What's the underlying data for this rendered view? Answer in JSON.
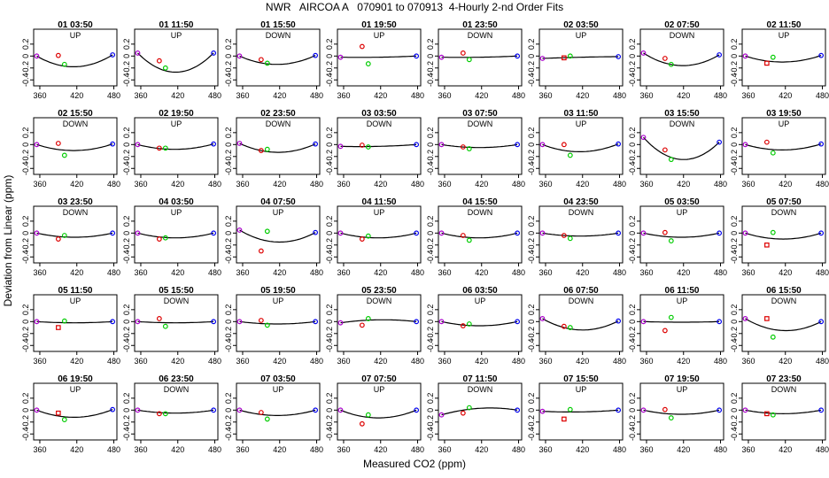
{
  "figure": {
    "title": "NWR   AIRCOA A   070901 to 070913  4-Hourly 2-nd Order Fits",
    "ylabel": "Deviation from Linear (ppm)",
    "xlabel": "Measured CO2 (ppm)"
  },
  "colors": {
    "fit_curve": "#000000",
    "point_purple": "#aa00cc",
    "point_red": "#dd0000",
    "point_green": "#00cc00",
    "point_blue": "#0000ee"
  },
  "chart_data": {
    "type": "scatter",
    "layout": "5 rows x 8 columns of small multiples",
    "x_axis": {
      "range": [
        350,
        485
      ],
      "ticks": [
        360,
        420,
        480
      ]
    },
    "y_axis": {
      "range": [
        -0.5,
        0.45
      ],
      "ticks": [
        0.2,
        0.0,
        -0.2,
        -0.4
      ],
      "tick_labels": [
        "0.2",
        "0",
        "-0.2",
        "-0.4"
      ]
    },
    "standards_x": {
      "purple": 355,
      "red": 390,
      "green": 400,
      "blue": 478
    },
    "panels": [
      {
        "title": "01 03:50",
        "dir": "UP",
        "curve": [
          0,
          -0.18,
          0.02
        ],
        "red": 0.01,
        "red_marker": "circle",
        "green": -0.14
      },
      {
        "title": "01 11:50",
        "dir": "UP",
        "curve": [
          0.05,
          -0.27,
          0.05
        ],
        "red": -0.08,
        "red_marker": "circle",
        "green": -0.2
      },
      {
        "title": "01 15:50",
        "dir": "DOWN",
        "curve": [
          0,
          -0.14,
          0.01
        ],
        "red": -0.06,
        "red_marker": "circle",
        "green": -0.12
      },
      {
        "title": "01 19:50",
        "dir": "UP",
        "curve": [
          -0.02,
          -0.02,
          0
        ],
        "red": 0.16,
        "red_marker": "circle",
        "green": -0.13
      },
      {
        "title": "01 23:50",
        "dir": "DOWN",
        "curve": [
          -0.02,
          -0.02,
          0
        ],
        "red": 0.05,
        "red_marker": "circle",
        "green": -0.06
      },
      {
        "title": "02 03:50",
        "dir": "UP",
        "curve": [
          -0.04,
          -0.02,
          -0.01
        ],
        "red": -0.03,
        "red_marker": "square",
        "green": 0
      },
      {
        "title": "02 07:50",
        "dir": "DOWN",
        "curve": [
          0.05,
          -0.16,
          0.02
        ],
        "red": -0.04,
        "red_marker": "circle",
        "green": -0.14
      },
      {
        "title": "02 11:50",
        "dir": "UP",
        "curve": [
          0,
          -0.1,
          0.01
        ],
        "red": -0.12,
        "red_marker": "square",
        "green": -0.02
      },
      {
        "title": "02 15:50",
        "dir": "DOWN",
        "curve": [
          0,
          -0.1,
          0.01
        ],
        "red": 0.02,
        "red_marker": "circle",
        "green": -0.18
      },
      {
        "title": "02 19:50",
        "dir": "UP",
        "curve": [
          0,
          -0.08,
          0.01
        ],
        "red": -0.06,
        "red_marker": "circle",
        "green": -0.06
      },
      {
        "title": "02 23:50",
        "dir": "DOWN",
        "curve": [
          0.02,
          -0.13,
          0.01
        ],
        "red": -0.1,
        "red_marker": "circle",
        "green": -0.08
      },
      {
        "title": "03 03:50",
        "dir": "DOWN",
        "curve": [
          -0.03,
          -0.03,
          0
        ],
        "red": -0.01,
        "red_marker": "circle",
        "green": -0.04
      },
      {
        "title": "03 07:50",
        "dir": "DOWN",
        "curve": [
          0,
          -0.05,
          0
        ],
        "red": -0.04,
        "red_marker": "circle",
        "green": -0.07
      },
      {
        "title": "03 11:50",
        "dir": "UP",
        "curve": [
          0,
          -0.12,
          0.01
        ],
        "red": 0,
        "red_marker": "circle",
        "green": -0.18
      },
      {
        "title": "03 15:50",
        "dir": "DOWN",
        "curve": [
          0.12,
          -0.25,
          0.04
        ],
        "red": -0.09,
        "red_marker": "circle",
        "green": -0.25
      },
      {
        "title": "03 19:50",
        "dir": "UP",
        "curve": [
          0,
          -0.09,
          0.01
        ],
        "red": 0.04,
        "red_marker": "circle",
        "green": -0.14
      },
      {
        "title": "03 23:50",
        "dir": "DOWN",
        "curve": [
          0,
          -0.07,
          0
        ],
        "red": -0.1,
        "red_marker": "circle",
        "green": -0.04
      },
      {
        "title": "04 03:50",
        "dir": "UP",
        "curve": [
          0,
          -0.08,
          0
        ],
        "red": -0.1,
        "red_marker": "circle",
        "green": -0.08
      },
      {
        "title": "04 07:50",
        "dir": "UP",
        "curve": [
          0.05,
          -0.15,
          0.01
        ],
        "red": -0.3,
        "red_marker": "circle",
        "green": 0.03
      },
      {
        "title": "04 11:50",
        "dir": "UP",
        "curve": [
          0,
          -0.08,
          0
        ],
        "red": -0.1,
        "red_marker": "circle",
        "green": -0.05
      },
      {
        "title": "04 15:50",
        "dir": "DOWN",
        "curve": [
          0,
          -0.08,
          0
        ],
        "red": -0.04,
        "red_marker": "circle",
        "green": -0.12
      },
      {
        "title": "04 23:50",
        "dir": "DOWN",
        "curve": [
          0,
          -0.05,
          0
        ],
        "red": -0.04,
        "red_marker": "circle",
        "green": -0.09
      },
      {
        "title": "05 03:50",
        "dir": "UP",
        "curve": [
          0,
          -0.07,
          0
        ],
        "red": 0.01,
        "red_marker": "circle",
        "green": -0.13
      },
      {
        "title": "05 07:50",
        "dir": "DOWN",
        "curve": [
          0,
          -0.1,
          0
        ],
        "red": -0.2,
        "red_marker": "square",
        "green": 0.01
      },
      {
        "title": "05 11:50",
        "dir": "UP",
        "curve": [
          0,
          -0.02,
          0
        ],
        "red": -0.1,
        "red_marker": "square",
        "green": 0.01
      },
      {
        "title": "05 15:50",
        "dir": "DOWN",
        "curve": [
          0,
          -0.02,
          0
        ],
        "red": 0.05,
        "red_marker": "circle",
        "green": -0.08
      },
      {
        "title": "05 19:50",
        "dir": "UP",
        "curve": [
          0,
          -0.04,
          0
        ],
        "red": 0.02,
        "red_marker": "circle",
        "green": -0.06
      },
      {
        "title": "05 23:50",
        "dir": "DOWN",
        "curve": [
          -0.02,
          0.03,
          0
        ],
        "red": -0.06,
        "red_marker": "circle",
        "green": 0.05
      },
      {
        "title": "06 03:50",
        "dir": "UP",
        "curve": [
          0,
          -0.07,
          0
        ],
        "red": -0.07,
        "red_marker": "circle",
        "green": -0.04
      },
      {
        "title": "06 07:50",
        "dir": "DOWN",
        "curve": [
          0.05,
          -0.14,
          0.01
        ],
        "red": -0.08,
        "red_marker": "circle",
        "green": -0.1
      },
      {
        "title": "06 11:50",
        "dir": "UP",
        "curve": [
          0,
          -0.01,
          0
        ],
        "red": -0.15,
        "red_marker": "circle",
        "green": 0.07
      },
      {
        "title": "06 15:50",
        "dir": "DOWN",
        "curve": [
          0.05,
          -0.15,
          0
        ],
        "red": 0.05,
        "red_marker": "square",
        "green": -0.26
      },
      {
        "title": "06 19:50",
        "dir": "UP",
        "curve": [
          0,
          -0.12,
          0.01
        ],
        "red": -0.05,
        "red_marker": "square",
        "green": -0.16
      },
      {
        "title": "06 23:50",
        "dir": "DOWN",
        "curve": [
          0,
          -0.05,
          0
        ],
        "red": -0.06,
        "red_marker": "circle",
        "green": -0.06
      },
      {
        "title": "07 03:50",
        "dir": "UP",
        "curve": [
          0,
          -0.09,
          0
        ],
        "red": -0.04,
        "red_marker": "circle",
        "green": -0.15
      },
      {
        "title": "07 07:50",
        "dir": "UP",
        "curve": [
          0,
          -0.13,
          0
        ],
        "red": -0.23,
        "red_marker": "circle",
        "green": -0.08
      },
      {
        "title": "07 11:50",
        "dir": "DOWN",
        "curve": [
          -0.08,
          0.03,
          0
        ],
        "red": -0.05,
        "red_marker": "circle",
        "green": 0.04
      },
      {
        "title": "07 15:50",
        "dir": "UP",
        "curve": [
          -0.02,
          -0.03,
          0
        ],
        "red": -0.15,
        "red_marker": "square",
        "green": 0.01
      },
      {
        "title": "07 19:50",
        "dir": "UP",
        "curve": [
          0,
          -0.07,
          0
        ],
        "red": 0.01,
        "red_marker": "circle",
        "green": -0.13
      },
      {
        "title": "07 23:50",
        "dir": "DOWN",
        "curve": [
          0,
          -0.06,
          0
        ],
        "red": -0.06,
        "red_marker": "square",
        "green": -0.08
      }
    ]
  }
}
